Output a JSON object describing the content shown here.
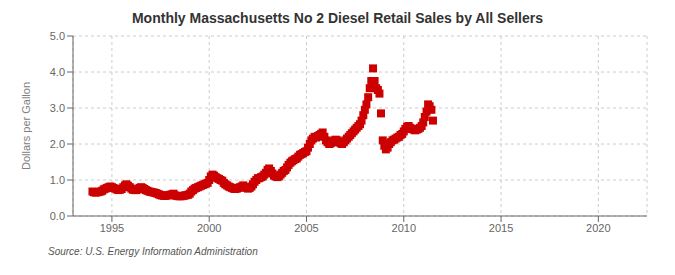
{
  "chart_data": {
    "type": "scatter",
    "title": "Monthly Massachusetts No 2 Diesel Retail Sales by All Sellers",
    "ylabel": "Dollars per Gallon",
    "annotations": [
      "Source: U.S. Energy Information Administration"
    ],
    "color": "#CC0000",
    "marker": "square",
    "grid": true,
    "xlim": [
      1993.0,
      2022.5
    ],
    "ylim": [
      0.0,
      5.0
    ],
    "xticks": [
      1995,
      2000,
      2005,
      2010,
      2015,
      2020
    ],
    "yticks": [
      {
        "value": 0.0,
        "label": "0.0"
      },
      {
        "value": 1.0,
        "label": "1.0"
      },
      {
        "value": 2.0,
        "label": "2.0"
      },
      {
        "value": 3.0,
        "label": "3.0"
      },
      {
        "value": 4.0,
        "label": "4.0"
      },
      {
        "value": 5.0,
        "label": "5.0"
      }
    ],
    "x": [
      1994.0,
      1994.08,
      1994.17,
      1994.25,
      1994.33,
      1994.42,
      1994.5,
      1994.58,
      1994.67,
      1994.75,
      1994.83,
      1994.92,
      1995.0,
      1995.08,
      1995.17,
      1995.25,
      1995.33,
      1995.42,
      1995.5,
      1995.58,
      1995.67,
      1995.75,
      1995.83,
      1995.92,
      1996.0,
      1996.08,
      1996.17,
      1996.25,
      1996.33,
      1996.42,
      1996.5,
      1996.58,
      1996.67,
      1996.75,
      1996.83,
      1996.92,
      1997.0,
      1997.08,
      1997.17,
      1997.25,
      1997.33,
      1997.42,
      1997.5,
      1997.58,
      1997.67,
      1997.75,
      1997.83,
      1997.92,
      1998.0,
      1998.08,
      1998.17,
      1998.25,
      1998.33,
      1998.42,
      1998.5,
      1998.58,
      1998.67,
      1998.75,
      1998.83,
      1998.92,
      1999.0,
      1999.08,
      1999.17,
      1999.25,
      1999.33,
      1999.42,
      1999.5,
      1999.58,
      1999.67,
      1999.75,
      1999.83,
      1999.92,
      2000.0,
      2000.08,
      2000.17,
      2000.25,
      2000.33,
      2000.42,
      2000.5,
      2000.58,
      2000.67,
      2000.75,
      2000.83,
      2000.92,
      2001.0,
      2001.08,
      2001.17,
      2001.25,
      2001.33,
      2001.42,
      2001.5,
      2001.58,
      2001.67,
      2001.75,
      2001.83,
      2001.92,
      2002.0,
      2002.08,
      2002.17,
      2002.25,
      2002.33,
      2002.42,
      2002.5,
      2002.58,
      2002.67,
      2002.75,
      2002.83,
      2002.92,
      2003.0,
      2003.08,
      2003.17,
      2003.25,
      2003.33,
      2003.42,
      2003.5,
      2003.58,
      2003.67,
      2003.75,
      2003.83,
      2003.92,
      2004.0,
      2004.08,
      2004.17,
      2004.25,
      2004.33,
      2004.42,
      2004.5,
      2004.58,
      2004.67,
      2004.75,
      2004.83,
      2004.92,
      2005.0,
      2005.08,
      2005.17,
      2005.25,
      2005.33,
      2005.42,
      2005.5,
      2005.58,
      2005.67,
      2005.75,
      2005.83,
      2005.92,
      2006.0,
      2006.08,
      2006.17,
      2006.25,
      2006.33,
      2006.42,
      2006.5,
      2006.58,
      2006.67,
      2006.75,
      2006.83,
      2006.92,
      2007.0,
      2007.08,
      2007.17,
      2007.25,
      2007.33,
      2007.42,
      2007.5,
      2007.58,
      2007.67,
      2007.75,
      2007.83,
      2007.92,
      2008.0,
      2008.08,
      2008.17,
      2008.25,
      2008.33,
      2008.42,
      2008.5,
      2008.58,
      2008.67,
      2008.75,
      2008.83,
      2008.92,
      2009.0,
      2009.08,
      2009.17,
      2009.25,
      2009.33,
      2009.42,
      2009.5,
      2009.58,
      2009.67,
      2009.75,
      2009.83,
      2009.92,
      2010.0,
      2010.08,
      2010.17,
      2010.25,
      2010.33,
      2010.42,
      2010.5,
      2010.58,
      2010.67,
      2010.75,
      2010.83,
      2010.92,
      2011.0,
      2011.08,
      2011.17,
      2011.25,
      2011.33,
      2011.42,
      2011.5
    ],
    "values": [
      0.68,
      0.66,
      0.65,
      0.66,
      0.67,
      0.68,
      0.7,
      0.74,
      0.76,
      0.78,
      0.8,
      0.82,
      0.8,
      0.78,
      0.76,
      0.74,
      0.72,
      0.73,
      0.75,
      0.8,
      0.85,
      0.88,
      0.84,
      0.8,
      0.76,
      0.73,
      0.72,
      0.72,
      0.74,
      0.78,
      0.8,
      0.78,
      0.75,
      0.72,
      0.7,
      0.68,
      0.67,
      0.66,
      0.65,
      0.64,
      0.62,
      0.6,
      0.58,
      0.57,
      0.56,
      0.56,
      0.57,
      0.58,
      0.59,
      0.6,
      0.62,
      0.57,
      0.56,
      0.55,
      0.55,
      0.55,
      0.56,
      0.57,
      0.58,
      0.59,
      0.62,
      0.68,
      0.72,
      0.76,
      0.78,
      0.8,
      0.82,
      0.84,
      0.86,
      0.88,
      0.9,
      0.92,
      1.0,
      1.1,
      1.15,
      1.12,
      1.08,
      1.05,
      1.03,
      1.0,
      0.98,
      0.92,
      0.88,
      0.85,
      0.82,
      0.8,
      0.78,
      0.76,
      0.75,
      0.76,
      0.78,
      0.8,
      0.82,
      0.85,
      0.8,
      0.78,
      0.76,
      0.78,
      0.82,
      0.88,
      0.95,
      1.0,
      1.05,
      1.05,
      1.08,
      1.1,
      1.15,
      1.2,
      1.28,
      1.32,
      1.25,
      1.18,
      1.12,
      1.1,
      1.08,
      1.1,
      1.15,
      1.2,
      1.25,
      1.28,
      1.35,
      1.42,
      1.48,
      1.52,
      1.55,
      1.58,
      1.6,
      1.65,
      1.7,
      1.72,
      1.75,
      1.78,
      1.8,
      1.9,
      2.0,
      2.1,
      2.15,
      2.2,
      2.18,
      2.22,
      2.25,
      2.28,
      2.32,
      2.2,
      2.1,
      2.05,
      2.0,
      2.02,
      2.05,
      2.1,
      2.12,
      2.1,
      2.05,
      2.02,
      2.0,
      2.05,
      2.1,
      2.15,
      2.2,
      2.25,
      2.3,
      2.35,
      2.4,
      2.45,
      2.5,
      2.55,
      2.65,
      2.8,
      2.95,
      3.1,
      3.3,
      3.55,
      3.75,
      4.1,
      3.75,
      3.55,
      3.5,
      3.4,
      2.85,
      2.1,
      1.95,
      1.85,
      1.9,
      2.0,
      2.05,
      2.1,
      2.12,
      2.15,
      2.18,
      2.2,
      2.25,
      2.28,
      2.35,
      2.42,
      2.48,
      2.5,
      2.45,
      2.42,
      2.4,
      2.38,
      2.4,
      2.42,
      2.45,
      2.5,
      2.6,
      2.75,
      2.9,
      3.1,
      3.05,
      2.95,
      2.65
    ]
  }
}
